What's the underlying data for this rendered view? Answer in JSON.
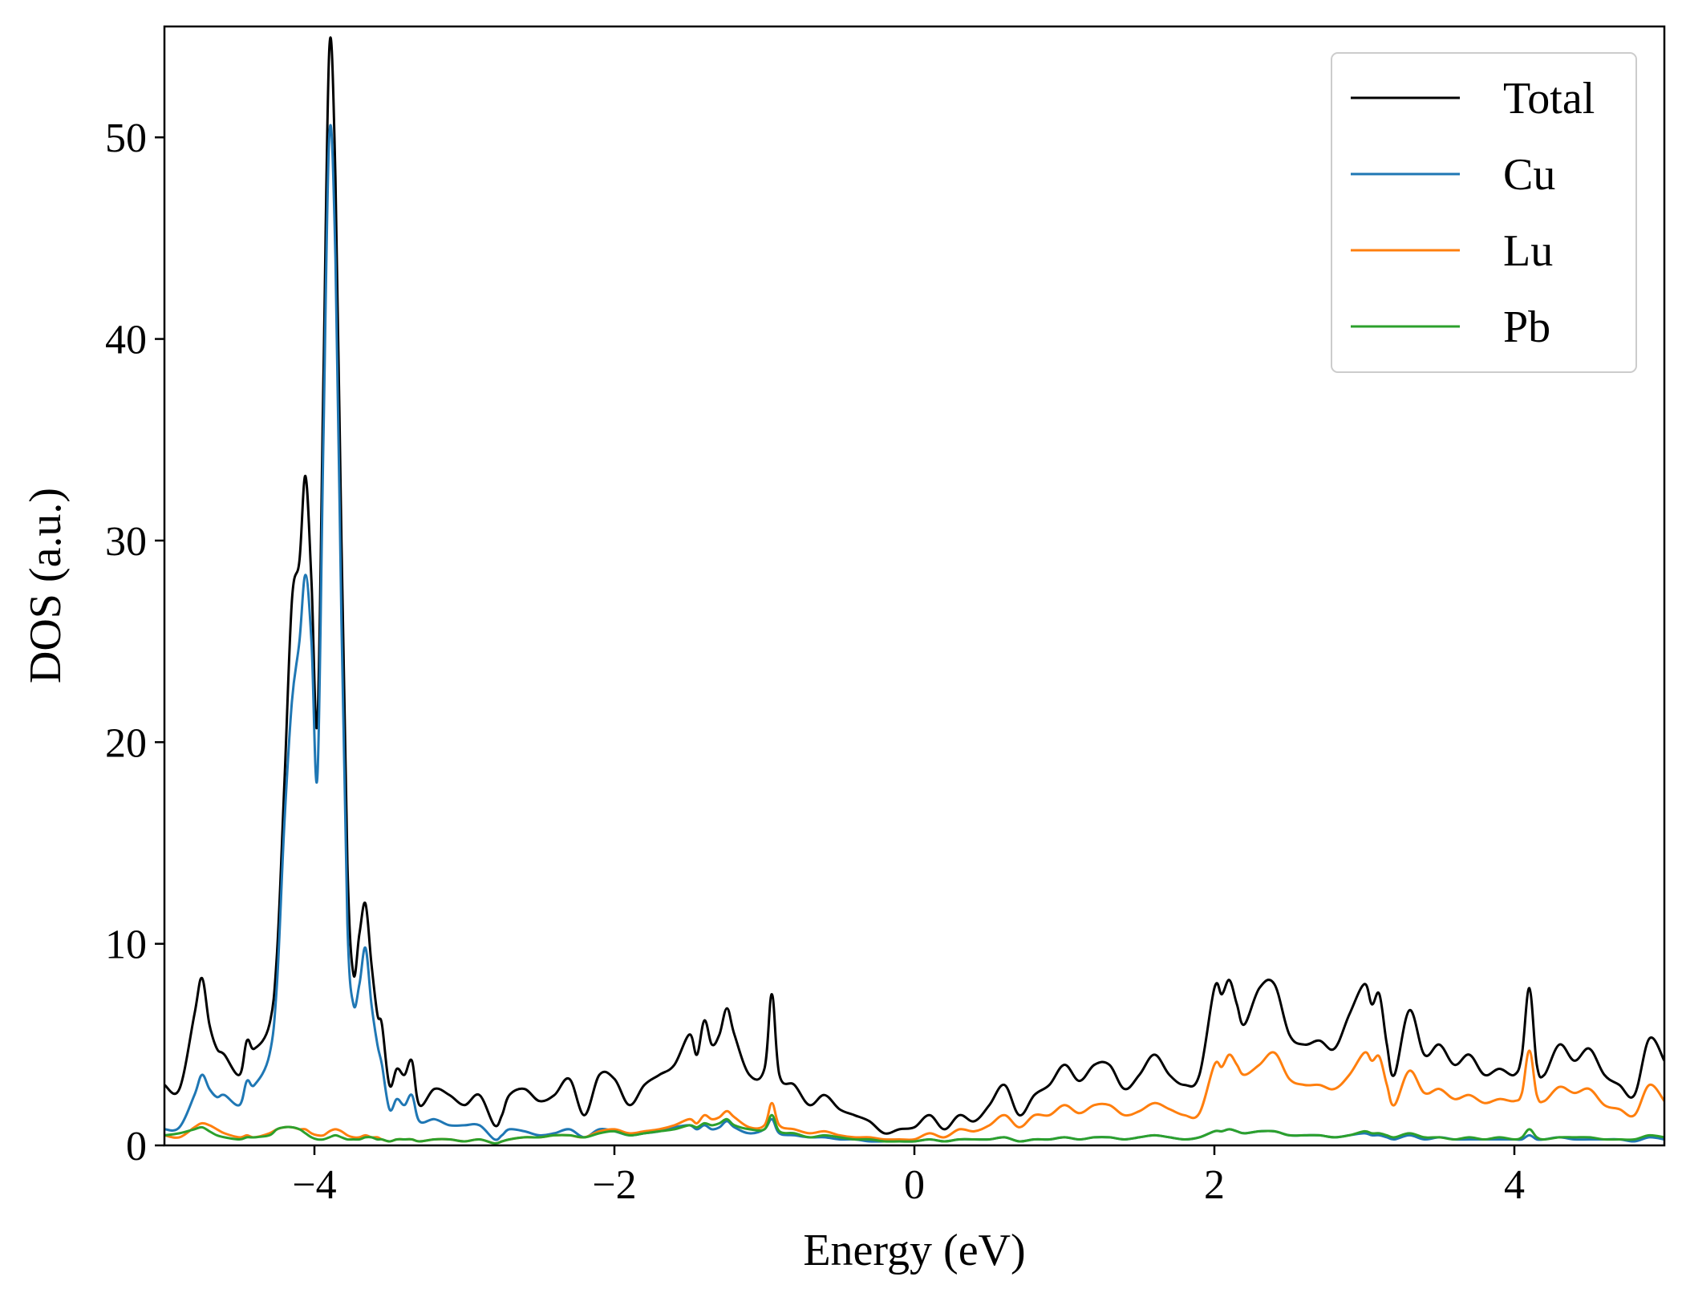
{
  "chart_data": {
    "type": "line",
    "title": "",
    "xlabel": "Energy (eV)",
    "ylabel": "DOS (a.u.)",
    "xlim": [
      -5,
      5
    ],
    "ylim": [
      0,
      55.5
    ],
    "grid": false,
    "legend_position": "top-right",
    "x_ticks": [
      -4,
      -2,
      0,
      2,
      4
    ],
    "x_tick_labels": [
      "−4",
      "−2",
      "0",
      "2",
      "4"
    ],
    "y_ticks": [
      0,
      10,
      20,
      30,
      40,
      50
    ],
    "y_tick_labels": [
      "0",
      "10",
      "20",
      "30",
      "40",
      "50"
    ],
    "x": [
      -5.0,
      -4.9,
      -4.8,
      -4.75,
      -4.7,
      -4.65,
      -4.6,
      -4.5,
      -4.45,
      -4.4,
      -4.3,
      -4.25,
      -4.2,
      -4.15,
      -4.1,
      -4.06,
      -4.02,
      -3.98,
      -3.94,
      -3.9,
      -3.86,
      -3.82,
      -3.78,
      -3.74,
      -3.7,
      -3.66,
      -3.62,
      -3.58,
      -3.55,
      -3.5,
      -3.45,
      -3.4,
      -3.35,
      -3.3,
      -3.2,
      -3.1,
      -3.0,
      -2.9,
      -2.8,
      -2.75,
      -2.7,
      -2.6,
      -2.5,
      -2.4,
      -2.3,
      -2.2,
      -2.1,
      -2.0,
      -1.9,
      -1.8,
      -1.7,
      -1.6,
      -1.5,
      -1.45,
      -1.4,
      -1.35,
      -1.3,
      -1.25,
      -1.2,
      -1.1,
      -1.0,
      -0.95,
      -0.9,
      -0.8,
      -0.7,
      -0.6,
      -0.5,
      -0.4,
      -0.3,
      -0.2,
      -0.1,
      0.0,
      0.1,
      0.2,
      0.3,
      0.4,
      0.5,
      0.6,
      0.7,
      0.8,
      0.9,
      1.0,
      1.1,
      1.2,
      1.3,
      1.4,
      1.5,
      1.6,
      1.7,
      1.8,
      1.9,
      2.0,
      2.05,
      2.1,
      2.15,
      2.2,
      2.3,
      2.4,
      2.5,
      2.6,
      2.7,
      2.8,
      2.9,
      3.0,
      3.05,
      3.1,
      3.15,
      3.2,
      3.3,
      3.4,
      3.5,
      3.6,
      3.7,
      3.8,
      3.9,
      4.0,
      4.05,
      4.1,
      4.15,
      4.2,
      4.3,
      4.4,
      4.5,
      4.6,
      4.7,
      4.8,
      4.9,
      5.0
    ],
    "series": [
      {
        "name": "Total",
        "color": "#000000",
        "values": [
          3.0,
          2.8,
          6.5,
          8.3,
          6.0,
          4.8,
          4.5,
          3.5,
          5.2,
          4.8,
          6.0,
          9.5,
          18.0,
          27.0,
          29.0,
          33.2,
          28.0,
          21.0,
          38.0,
          54.5,
          48.0,
          30.0,
          14.0,
          8.5,
          10.5,
          12.0,
          9.0,
          6.5,
          6.0,
          3.0,
          3.8,
          3.5,
          4.2,
          2.0,
          2.8,
          2.5,
          2.0,
          2.5,
          1.0,
          1.5,
          2.5,
          2.8,
          2.2,
          2.5,
          3.3,
          1.5,
          3.5,
          3.3,
          2.0,
          3.0,
          3.5,
          4.0,
          5.5,
          4.5,
          6.2,
          5.0,
          5.5,
          6.8,
          5.5,
          3.5,
          3.8,
          7.5,
          3.5,
          3.0,
          2.0,
          2.5,
          1.8,
          1.5,
          1.2,
          0.6,
          0.8,
          0.9,
          1.5,
          0.8,
          1.5,
          1.2,
          2.0,
          3.0,
          1.5,
          2.5,
          3.0,
          4.0,
          3.2,
          4.0,
          4.0,
          2.8,
          3.5,
          4.5,
          3.5,
          3.0,
          3.5,
          7.8,
          7.5,
          8.2,
          7.0,
          6.0,
          7.8,
          8.0,
          5.5,
          5.0,
          5.2,
          4.8,
          6.5,
          8.0,
          7.0,
          7.5,
          5.0,
          3.5,
          6.7,
          4.5,
          5.0,
          4.0,
          4.5,
          3.5,
          3.8,
          3.5,
          4.5,
          7.8,
          4.0,
          3.5,
          5.0,
          4.2,
          4.8,
          3.5,
          3.0,
          2.5,
          5.3,
          4.2
        ]
      },
      {
        "name": "Cu",
        "color": "#1f77b4",
        "values": [
          0.8,
          0.9,
          2.5,
          3.5,
          2.8,
          2.4,
          2.5,
          2.0,
          3.2,
          3.0,
          4.5,
          8.0,
          16.0,
          22.0,
          25.0,
          28.3,
          25.0,
          18.3,
          35.0,
          50.2,
          44.0,
          26.0,
          11.0,
          7.0,
          8.0,
          9.8,
          7.0,
          5.0,
          4.0,
          1.8,
          2.3,
          2.0,
          2.5,
          1.2,
          1.3,
          1.0,
          1.0,
          1.0,
          0.3,
          0.5,
          0.8,
          0.7,
          0.5,
          0.6,
          0.8,
          0.4,
          0.8,
          0.7,
          0.5,
          0.6,
          0.7,
          0.9,
          1.0,
          0.8,
          1.0,
          0.8,
          0.9,
          1.2,
          0.9,
          0.6,
          0.8,
          1.3,
          0.6,
          0.5,
          0.4,
          0.4,
          0.3,
          0.3,
          0.2,
          0.2,
          0.2,
          0.2,
          0.3,
          0.2,
          0.3,
          0.3,
          0.3,
          0.4,
          0.2,
          0.3,
          0.3,
          0.4,
          0.3,
          0.4,
          0.4,
          0.3,
          0.4,
          0.5,
          0.4,
          0.3,
          0.4,
          0.7,
          0.7,
          0.8,
          0.7,
          0.6,
          0.7,
          0.7,
          0.5,
          0.5,
          0.5,
          0.4,
          0.5,
          0.6,
          0.5,
          0.5,
          0.4,
          0.3,
          0.5,
          0.3,
          0.4,
          0.3,
          0.3,
          0.3,
          0.3,
          0.3,
          0.3,
          0.5,
          0.3,
          0.3,
          0.4,
          0.3,
          0.3,
          0.3,
          0.3,
          0.2,
          0.4,
          0.3
        ]
      },
      {
        "name": "Lu",
        "color": "#ff7f0e",
        "values": [
          0.5,
          0.4,
          0.9,
          1.1,
          1.0,
          0.8,
          0.6,
          0.4,
          0.5,
          0.4,
          0.6,
          0.8,
          0.9,
          0.9,
          0.8,
          0.8,
          0.6,
          0.5,
          0.5,
          0.7,
          0.8,
          0.7,
          0.5,
          0.4,
          0.4,
          0.5,
          0.4,
          0.4,
          0.3,
          0.2,
          0.3,
          0.3,
          0.3,
          0.2,
          0.3,
          0.3,
          0.2,
          0.3,
          0.1,
          0.2,
          0.3,
          0.4,
          0.4,
          0.5,
          0.5,
          0.4,
          0.7,
          0.8,
          0.6,
          0.7,
          0.8,
          1.0,
          1.3,
          1.1,
          1.5,
          1.3,
          1.4,
          1.7,
          1.4,
          0.9,
          1.0,
          2.1,
          1.0,
          0.8,
          0.6,
          0.7,
          0.5,
          0.4,
          0.4,
          0.3,
          0.3,
          0.3,
          0.6,
          0.4,
          0.8,
          0.7,
          1.0,
          1.5,
          0.9,
          1.5,
          1.5,
          2.0,
          1.6,
          2.0,
          2.0,
          1.5,
          1.7,
          2.1,
          1.8,
          1.5,
          1.6,
          4.0,
          3.9,
          4.5,
          4.0,
          3.5,
          4.0,
          4.6,
          3.3,
          3.0,
          3.0,
          2.8,
          3.5,
          4.6,
          4.2,
          4.4,
          3.0,
          2.0,
          3.7,
          2.6,
          2.8,
          2.3,
          2.5,
          2.1,
          2.3,
          2.2,
          2.6,
          4.7,
          2.5,
          2.2,
          2.9,
          2.6,
          2.8,
          2.0,
          1.8,
          1.5,
          3.0,
          2.2
        ]
      },
      {
        "name": "Pb",
        "color": "#2ca02c",
        "values": [
          0.5,
          0.6,
          0.8,
          0.9,
          0.7,
          0.5,
          0.4,
          0.3,
          0.4,
          0.4,
          0.5,
          0.8,
          0.9,
          0.9,
          0.8,
          0.6,
          0.4,
          0.3,
          0.3,
          0.4,
          0.5,
          0.4,
          0.3,
          0.3,
          0.3,
          0.4,
          0.4,
          0.3,
          0.3,
          0.2,
          0.3,
          0.3,
          0.3,
          0.2,
          0.3,
          0.3,
          0.2,
          0.3,
          0.1,
          0.2,
          0.3,
          0.4,
          0.4,
          0.5,
          0.5,
          0.4,
          0.6,
          0.7,
          0.5,
          0.6,
          0.7,
          0.8,
          1.0,
          0.9,
          1.1,
          1.0,
          1.1,
          1.3,
          1.0,
          0.8,
          0.8,
          1.5,
          0.7,
          0.6,
          0.4,
          0.5,
          0.4,
          0.3,
          0.3,
          0.2,
          0.2,
          0.2,
          0.3,
          0.2,
          0.3,
          0.3,
          0.3,
          0.4,
          0.2,
          0.3,
          0.3,
          0.4,
          0.3,
          0.4,
          0.4,
          0.3,
          0.4,
          0.5,
          0.4,
          0.3,
          0.4,
          0.7,
          0.7,
          0.8,
          0.7,
          0.6,
          0.7,
          0.7,
          0.5,
          0.5,
          0.5,
          0.4,
          0.5,
          0.7,
          0.6,
          0.6,
          0.5,
          0.4,
          0.6,
          0.4,
          0.4,
          0.3,
          0.4,
          0.3,
          0.4,
          0.3,
          0.4,
          0.8,
          0.4,
          0.3,
          0.4,
          0.4,
          0.4,
          0.3,
          0.3,
          0.3,
          0.5,
          0.4
        ]
      }
    ]
  }
}
